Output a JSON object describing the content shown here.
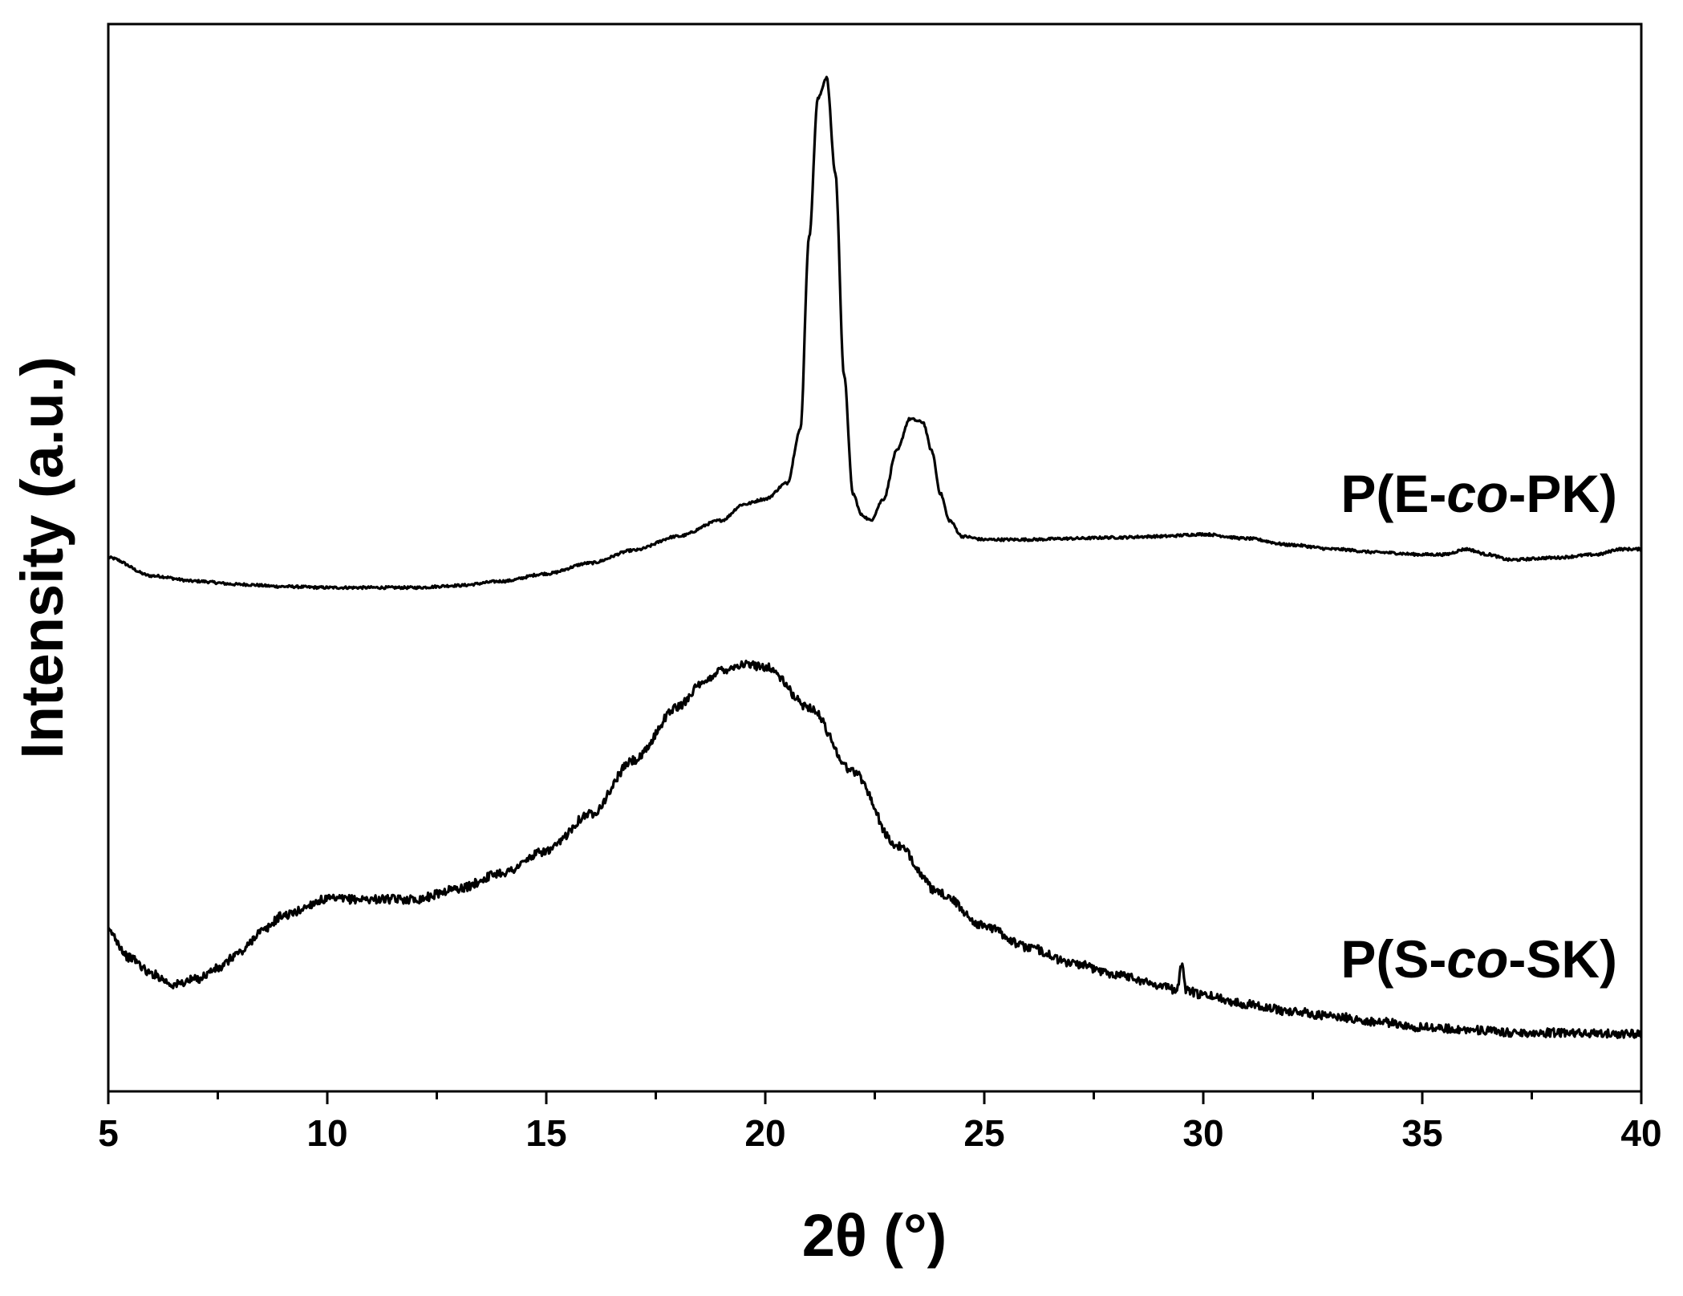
{
  "chart_data": {
    "type": "line",
    "xlabel": "2θ (°)",
    "ylabel": "Intensity (a.u.)",
    "xlim": [
      5,
      40
    ],
    "ylim": [
      0,
      1
    ],
    "grid": false,
    "legend": "none",
    "x_ticks": [
      5,
      10,
      15,
      20,
      25,
      30,
      35,
      40
    ],
    "series": [
      {
        "name": "P(E-co-PK)",
        "label_parts": [
          "P(E-",
          "co",
          "-PK)"
        ],
        "x": [
          5,
          6,
          7,
          8,
          9,
          10,
          11,
          12,
          13,
          14,
          15,
          16,
          17,
          18,
          19,
          19.5,
          20,
          20.5,
          20.8,
          21,
          21.2,
          21.4,
          21.6,
          21.8,
          22,
          22.2,
          22.4,
          22.7,
          23,
          23.3,
          23.6,
          23.8,
          24,
          24.2,
          24.5,
          25,
          26,
          27,
          28,
          29,
          30,
          31,
          32,
          33,
          34,
          35,
          35.5,
          36,
          36.5,
          37,
          38,
          39,
          39.5,
          40
        ],
        "y": [
          0.5,
          0.483,
          0.478,
          0.475,
          0.473,
          0.472,
          0.472,
          0.472,
          0.474,
          0.478,
          0.485,
          0.495,
          0.507,
          0.52,
          0.535,
          0.55,
          0.555,
          0.57,
          0.62,
          0.8,
          0.93,
          0.95,
          0.86,
          0.67,
          0.56,
          0.54,
          0.535,
          0.555,
          0.6,
          0.63,
          0.627,
          0.6,
          0.56,
          0.535,
          0.52,
          0.517,
          0.517,
          0.518,
          0.519,
          0.52,
          0.522,
          0.518,
          0.512,
          0.508,
          0.505,
          0.503,
          0.503,
          0.508,
          0.503,
          0.498,
          0.5,
          0.503,
          0.508,
          0.508
        ]
      },
      {
        "name": "P(S-co-SK)",
        "label_parts": [
          "P(S-",
          "co",
          "-SK)"
        ],
        "x": [
          5,
          5.5,
          6,
          6.5,
          7,
          7.5,
          8,
          8.5,
          9,
          10,
          11,
          12,
          13,
          14,
          15,
          16,
          17,
          18,
          18.5,
          19,
          19.5,
          20,
          21,
          22,
          23,
          24,
          25,
          26,
          27,
          28,
          29,
          29.4,
          29.5,
          29.6,
          30,
          31,
          32,
          33,
          34,
          35,
          36,
          37,
          38,
          39,
          40
        ],
        "y": [
          0.15,
          0.125,
          0.11,
          0.1,
          0.105,
          0.115,
          0.13,
          0.15,
          0.165,
          0.18,
          0.18,
          0.18,
          0.19,
          0.205,
          0.225,
          0.26,
          0.31,
          0.36,
          0.38,
          0.395,
          0.4,
          0.398,
          0.36,
          0.3,
          0.23,
          0.185,
          0.155,
          0.135,
          0.12,
          0.11,
          0.1,
          0.095,
          0.12,
          0.095,
          0.09,
          0.082,
          0.075,
          0.07,
          0.065,
          0.06,
          0.058,
          0.055,
          0.055,
          0.054,
          0.054
        ]
      }
    ]
  }
}
